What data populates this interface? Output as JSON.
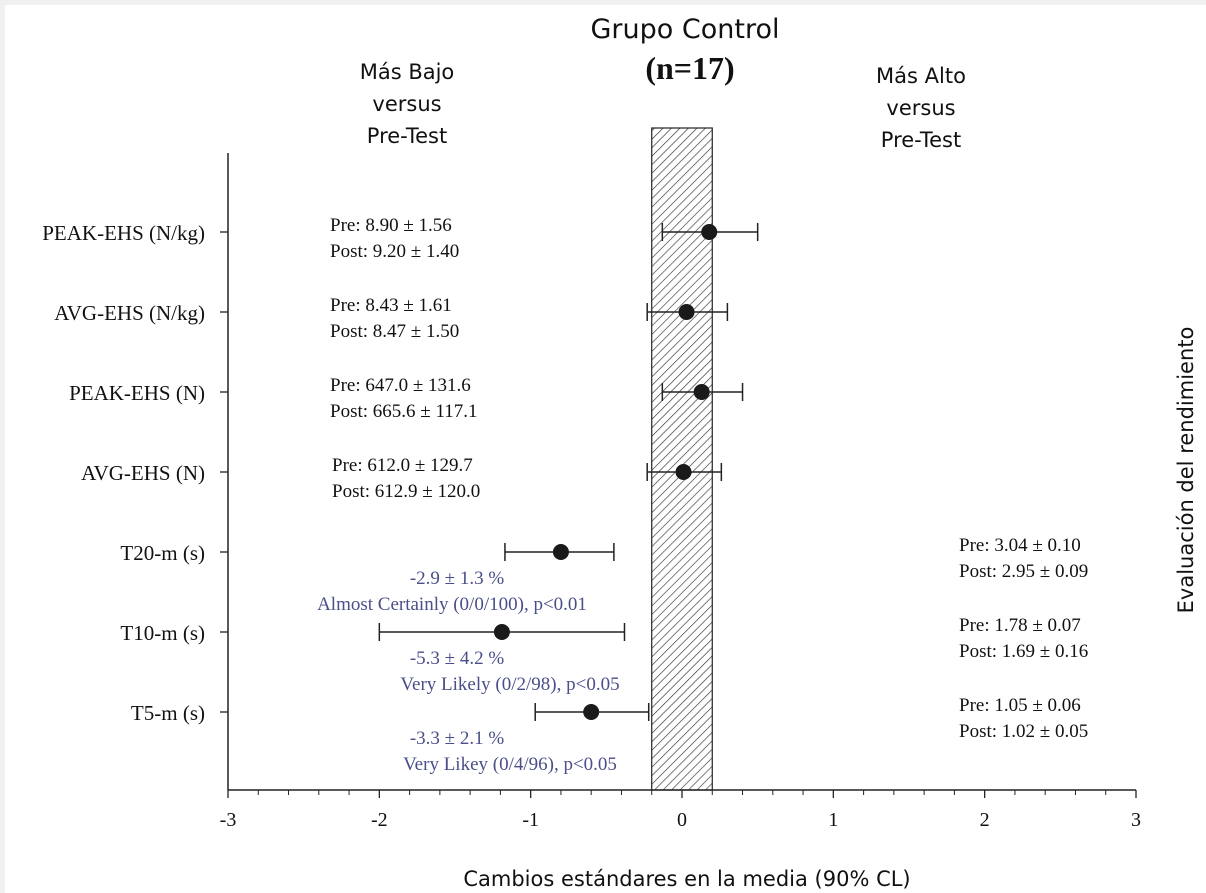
{
  "chart_data": {
    "type": "forest",
    "title": "Grupo Control",
    "subtitle": "(n=17)",
    "left_header": [
      "Más Bajo",
      "versus",
      "Pre-Test"
    ],
    "right_header": [
      "Más Alto",
      "versus",
      "Pre-Test"
    ],
    "xlabel": "Cambios estándares en la media (90% CL)",
    "ylabel": "Evaluación del rendimiento",
    "xlim": [
      -3,
      3
    ],
    "xticks": [
      "-3",
      "-2",
      "-1",
      "0",
      "1",
      "2",
      "3"
    ],
    "trivial_region": [
      -0.2,
      0.2
    ],
    "rows": [
      {
        "label": "PEAK-EHS (N/kg)",
        "mean": 0.18,
        "lower": -0.13,
        "upper": 0.5,
        "pre": "Pre: 8.90 ± 1.56",
        "post": "Post: 9.20 ± 1.40",
        "side": "left",
        "effect": "",
        "inference": ""
      },
      {
        "label": "AVG-EHS (N/kg)",
        "mean": 0.03,
        "lower": -0.23,
        "upper": 0.3,
        "pre": "Pre: 8.43 ± 1.61",
        "post": "Post: 8.47 ± 1.50",
        "side": "left",
        "effect": "",
        "inference": ""
      },
      {
        "label": "PEAK-EHS (N)",
        "mean": 0.13,
        "lower": -0.13,
        "upper": 0.4,
        "pre": "Pre: 647.0 ± 131.6",
        "post": "Post: 665.6 ± 117.1",
        "side": "left",
        "effect": "",
        "inference": ""
      },
      {
        "label": "AVG-EHS (N)",
        "mean": 0.01,
        "lower": -0.23,
        "upper": 0.26,
        "pre": "Pre: 612.0 ± 129.7",
        "post": "Post: 612.9 ± 120.0",
        "side": "left",
        "effect": "",
        "inference": ""
      },
      {
        "label": "T20-m (s)",
        "mean": -0.8,
        "lower": -1.17,
        "upper": -0.45,
        "pre": "Pre: 3.04 ± 0.10",
        "post": "Post: 2.95 ± 0.09",
        "side": "right",
        "effect": "-2.9 ± 1.3 %",
        "inference": "Almost Certainly (0/0/100), p<0.01"
      },
      {
        "label": "T10-m (s)",
        "mean": -1.19,
        "lower": -2.0,
        "upper": -0.38,
        "pre": "Pre: 1.78 ± 0.07",
        "post": "Post: 1.69 ± 0.16",
        "side": "right",
        "effect": "-5.3 ± 4.2 %",
        "inference": "Very Likely (0/2/98), p<0.05"
      },
      {
        "label": "T5-m (s)",
        "mean": -0.6,
        "lower": -0.97,
        "upper": -0.22,
        "pre": "Pre: 1.05 ± 0.06",
        "post": "Post: 1.02 ± 0.05",
        "side": "right",
        "effect": "-3.3 ± 2.1 %",
        "inference": "Very Likey (0/4/96), p<0.05"
      }
    ],
    "colors": {
      "text": "#111111",
      "annotation": "#4a4f8a",
      "point": "#1a1a1a",
      "hatch": "#333333"
    }
  }
}
